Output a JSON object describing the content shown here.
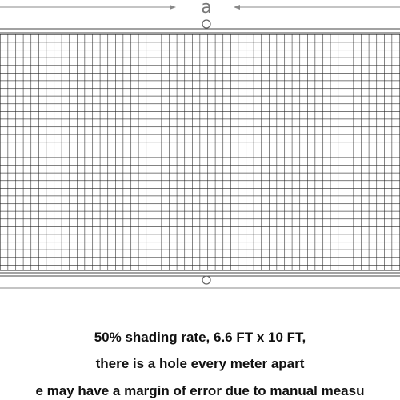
{
  "dimension_label": "a",
  "caption": [
    "50% shading  rate, 6.6 FT x 10 FT,",
    "there is a hole every meter apart",
    "e  may  have a margin of error due to manual measu"
  ]
}
